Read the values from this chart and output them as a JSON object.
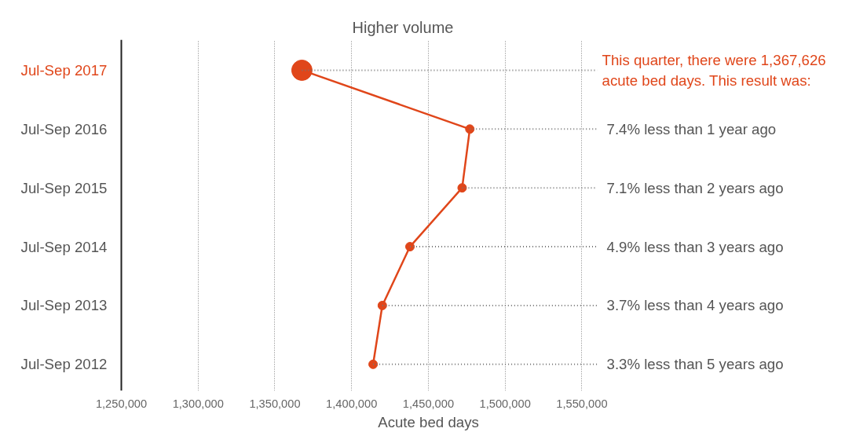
{
  "chart_data": {
    "type": "line",
    "orientation": "horizontal",
    "xlabel": "Acute bed days",
    "categories": [
      "Jul-Sep 2017",
      "Jul-Sep 2016",
      "Jul-Sep 2015",
      "Jul-Sep 2014",
      "Jul-Sep 2013",
      "Jul-Sep 2012"
    ],
    "series": [
      {
        "color": "#e0461a",
        "values": [
          1367626,
          1477000,
          1472000,
          1438000,
          1420000,
          1414000
        ]
      }
    ],
    "xlim": [
      1250000,
      1560000
    ],
    "xticks": [
      {
        "value": 1250000,
        "label": "1,250,000"
      },
      {
        "value": 1300000,
        "label": "1,300,000"
      },
      {
        "value": 1350000,
        "label": "1,350,000"
      },
      {
        "value": 1400000,
        "label": "1,400,000"
      },
      {
        "value": 1450000,
        "label": "1,450,000"
      },
      {
        "value": 1500000,
        "label": "1,500,000"
      },
      {
        "value": 1550000,
        "label": "1,550,000"
      }
    ],
    "grid": "x",
    "marker": "circle",
    "annotations": [
      "Higher volume",
      {
        "text": "This quarter, there were 1,367,626\nacute bed days. This result was:",
        "x": 1367626,
        "y": "Jul-Sep 2017"
      },
      {
        "text": "7.4% less than 1 year ago",
        "x": 1477000,
        "y": "Jul-Sep 2016"
      },
      {
        "text": "7.1% less than 2 years ago",
        "x": 1472000,
        "y": "Jul-Sep 2015"
      },
      {
        "text": "4.9% less than 3 years ago",
        "x": 1438000,
        "y": "Jul-Sep 2014"
      },
      {
        "text": "3.7% less than 4 years ago",
        "x": 1420000,
        "y": "Jul-Sep 2013"
      },
      {
        "text": "3.3% less than 5 years ago",
        "x": 1414000,
        "y": "Jul-Sep 2012"
      }
    ]
  }
}
